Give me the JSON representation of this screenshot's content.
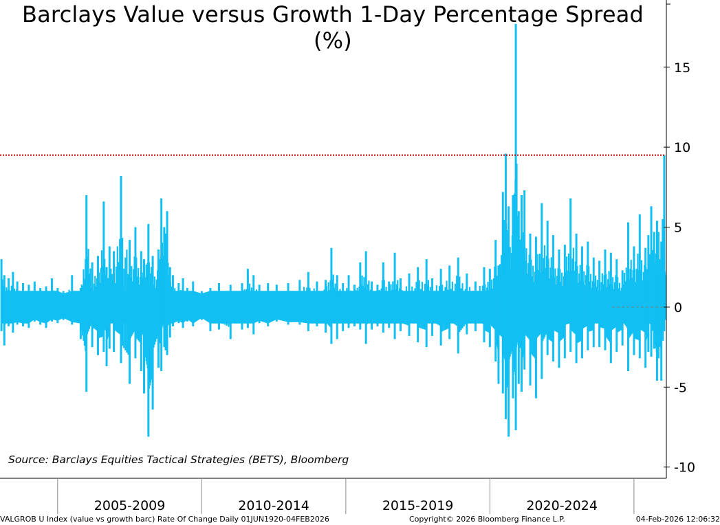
{
  "chart_data": {
    "type": "bar",
    "title": "Barclays Value versus Growth 1-Day Percentage Spread (%)",
    "source_note": "Source: Barclays Equities Tactical Strategies (BETS), Bloomberg",
    "xlim": [
      2003.0,
      2026.1
    ],
    "ylim": [
      -10.7,
      19.2
    ],
    "y_ticks": [
      15,
      10,
      5,
      0,
      -5,
      -10
    ],
    "y_tick_labels": [
      "15",
      "10",
      "5",
      "0",
      "-5",
      "-10"
    ],
    "x_period_boundaries": [
      2005.0,
      2010.0,
      2015.0,
      2020.0,
      2025.0
    ],
    "x_period_labels": [
      {
        "label": "2005-2009",
        "center": 2007.5
      },
      {
        "label": "2010-2014",
        "center": 2012.5
      },
      {
        "label": "2015-2019",
        "center": 2017.5
      },
      {
        "label": "2020-2024",
        "center": 2022.5
      }
    ],
    "reference_line": {
      "value": 9.5,
      "color": "#c00000",
      "style": "dotted"
    },
    "zero_line": {
      "value": 0,
      "color": "#808080",
      "style": "dashed"
    },
    "series_color": "#12bff2",
    "series": [
      {
        "name": "",
        "x": [
          2003.05,
          2003.15,
          2003.3,
          2003.45,
          2003.6,
          2003.8,
          2004.0,
          2004.2,
          2004.4,
          2004.6,
          2004.8,
          2005.0,
          2005.2,
          2005.5,
          2005.8,
          2006.0,
          2006.2,
          2006.4,
          2006.6,
          2006.7,
          2006.8,
          2006.95,
          2007.2,
          2007.5,
          2007.7,
          2007.9,
          2008.0,
          2008.15,
          2008.3,
          2008.5,
          2008.6,
          2008.7,
          2008.75,
          2008.8,
          2008.9,
          2009.0,
          2009.2,
          2009.35,
          2009.5,
          2009.7,
          2010.0,
          2010.3,
          2010.6,
          2011.0,
          2011.4,
          2011.6,
          2011.8,
          2012.0,
          2012.3,
          2012.6,
          2013.0,
          2013.4,
          2013.7,
          2014.0,
          2014.3,
          2014.5,
          2014.7,
          2014.9,
          2015.1,
          2015.3,
          2015.5,
          2015.7,
          2015.9,
          2016.1,
          2016.3,
          2016.5,
          2016.7,
          2016.9,
          2017.2,
          2017.5,
          2017.8,
          2018.0,
          2018.3,
          2018.6,
          2018.9,
          2019.2,
          2019.5,
          2019.8,
          2020.0,
          2020.2,
          2020.3,
          2020.45,
          2020.55,
          2020.65,
          2020.8,
          2020.9,
          2021.0,
          2021.1,
          2021.2,
          2021.4,
          2021.6,
          2021.8,
          2022.0,
          2022.2,
          2022.4,
          2022.6,
          2022.8,
          2023.0,
          2023.2,
          2023.4,
          2023.6,
          2023.8,
          2024.0,
          2024.2,
          2024.4,
          2024.6,
          2024.8,
          2025.0,
          2025.2,
          2025.4,
          2025.5,
          2025.6,
          2025.7,
          2025.8,
          2025.85,
          2025.9,
          2025.95,
          2026.0,
          2026.05,
          2026.08
        ],
        "high": [
          3.0,
          2.0,
          1.8,
          2.2,
          1.6,
          1.5,
          1.4,
          1.6,
          1.2,
          1.3,
          1.8,
          1.2,
          1.0,
          2.0,
          1.2,
          7.0,
          2.8,
          3.2,
          6.6,
          2.5,
          3.8,
          3.5,
          8.2,
          4.2,
          5.0,
          3.5,
          3.0,
          5.2,
          3.2,
          3.6,
          6.8,
          5.0,
          4.6,
          6.0,
          2.5,
          2.0,
          1.5,
          1.8,
          1.2,
          1.6,
          1.0,
          1.2,
          1.5,
          1.4,
          1.5,
          2.4,
          2.0,
          1.4,
          1.5,
          1.4,
          1.5,
          1.7,
          2.2,
          1.6,
          1.7,
          3.7,
          2.0,
          1.5,
          2.0,
          1.4,
          2.8,
          3.5,
          1.6,
          1.4,
          2.8,
          1.6,
          3.4,
          1.8,
          2.1,
          2.5,
          3.0,
          1.8,
          2.4,
          2.6,
          3.1,
          2.1,
          1.6,
          2.5,
          2.4,
          4.2,
          2.6,
          7.2,
          9.6,
          6.3,
          7.0,
          17.7,
          6.0,
          7.0,
          7.3,
          4.6,
          4.4,
          6.5,
          5.4,
          4.5,
          3.6,
          3.9,
          6.8,
          4.6,
          3.8,
          4.1,
          3.1,
          2.9,
          3.6,
          3.4,
          3.0,
          2.3,
          5.3,
          3.8,
          5.8,
          3.7,
          4.5,
          6.3,
          4.7,
          5.4,
          4.7,
          3.0,
          4.1,
          5.5,
          9.5,
          2.0
        ],
        "low": [
          -1.5,
          -2.4,
          -1.2,
          -1.6,
          -1.1,
          -1.2,
          -1.3,
          -0.9,
          -1.1,
          -1.3,
          -0.9,
          -1.0,
          -0.8,
          -1.1,
          -2.0,
          -5.3,
          -2.5,
          -3.0,
          -2.8,
          -3.7,
          -2.6,
          -2.8,
          -3.5,
          -4.8,
          -3.2,
          -4.0,
          -5.4,
          -8.1,
          -6.4,
          -3.8,
          -4.0,
          -2.5,
          -2.7,
          -3.0,
          -1.9,
          -1.2,
          -1.0,
          -1.3,
          -0.9,
          -1.2,
          -0.8,
          -1.5,
          -1.4,
          -2.0,
          -1.4,
          -1.3,
          -1.7,
          -1.0,
          -1.2,
          -0.9,
          -1.1,
          -1.1,
          -1.5,
          -1.2,
          -1.6,
          -2.3,
          -2.0,
          -1.5,
          -1.3,
          -1.2,
          -1.4,
          -2.3,
          -1.4,
          -1.2,
          -1.6,
          -1.3,
          -2.0,
          -1.5,
          -1.8,
          -2.2,
          -2.5,
          -1.8,
          -2.4,
          -2.0,
          -2.9,
          -1.7,
          -1.5,
          -2.2,
          -2.5,
          -3.4,
          -4.8,
          -5.4,
          -7.0,
          -8.1,
          -5.7,
          -7.7,
          -4.8,
          -5.3,
          -3.9,
          -4.9,
          -5.7,
          -4.5,
          -3.0,
          -3.4,
          -3.8,
          -3.2,
          -2.8,
          -3.5,
          -3.2,
          -2.7,
          -2.5,
          -2.5,
          -2.7,
          -3.5,
          -2.8,
          -2.4,
          -4.0,
          -3.0,
          -3.2,
          -3.8,
          -2.8,
          -3.1,
          -2.6,
          -4.6,
          -3.2,
          -2.5,
          -4.6,
          -2.1,
          -1.5,
          -0.8
        ]
      }
    ]
  },
  "footer": {
    "ticker": "VALGROB U Index (value vs growth barc) Rate Of Change Daily 01JUN1920-04FEB2026",
    "copyright": "Copyright© 2026 Bloomberg Finance L.P.",
    "timestamp": "04-Feb-2026 12:06:32"
  }
}
